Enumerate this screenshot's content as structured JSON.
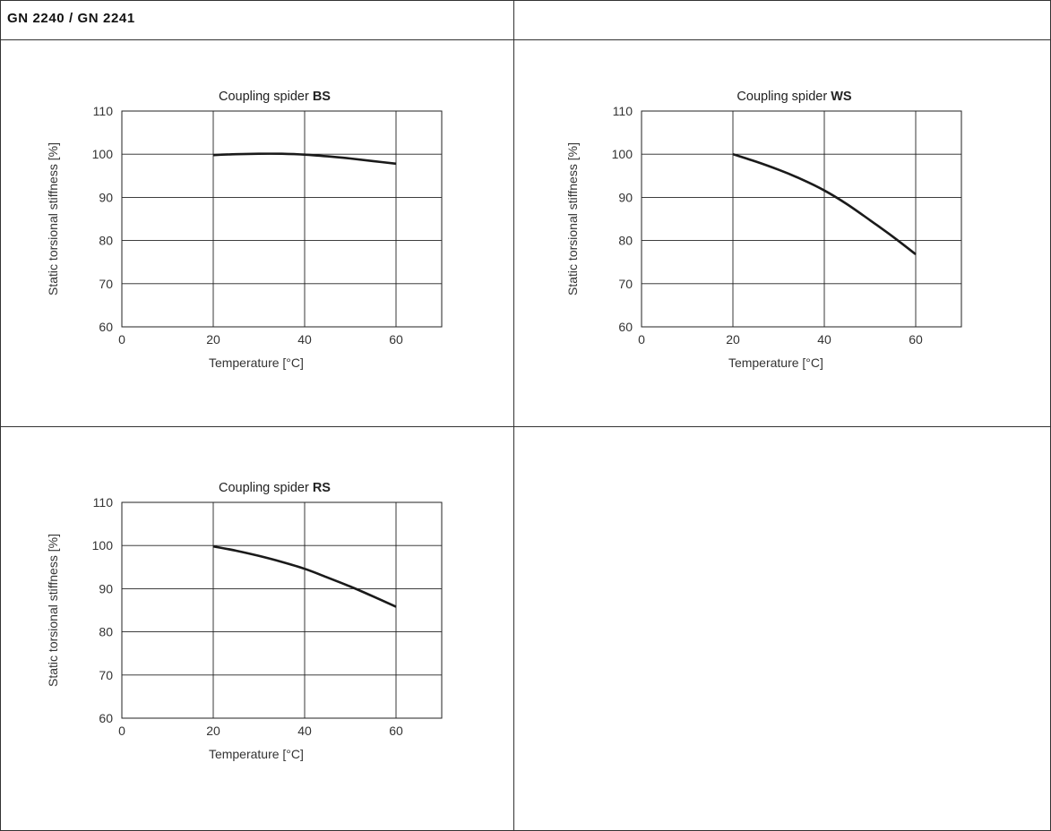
{
  "header": {
    "title": "GN 2240 / GN 2241"
  },
  "colors": {
    "line": "#1a1a1a",
    "grid": "#222222",
    "border": "#333333"
  },
  "chart_data": [
    {
      "type": "line",
      "title_prefix": "Coupling spider ",
      "title_bold": "BS",
      "xlabel": "Temperature [°C]",
      "ylabel": "Static torsional stiffness [%]",
      "xlim": [
        0,
        70
      ],
      "ylim": [
        60,
        110
      ],
      "xticks": [
        0,
        20,
        40,
        60
      ],
      "yticks": [
        60,
        70,
        80,
        90,
        100,
        110
      ],
      "grid": true,
      "series": [
        {
          "x": [
            20,
            25,
            30,
            35,
            40,
            45,
            50,
            55,
            60
          ],
          "y": [
            99.8,
            100.0,
            100.1,
            100.1,
            99.9,
            99.5,
            99.0,
            98.4,
            97.8
          ]
        }
      ]
    },
    {
      "type": "line",
      "title_prefix": "Coupling spider ",
      "title_bold": "WS",
      "xlabel": "Temperature [°C]",
      "ylabel": "Static torsional stiffness [%]",
      "xlim": [
        0,
        70
      ],
      "ylim": [
        60,
        110
      ],
      "xticks": [
        0,
        20,
        40,
        60
      ],
      "yticks": [
        60,
        70,
        80,
        90,
        100,
        110
      ],
      "grid": true,
      "series": [
        {
          "x": [
            20,
            25,
            30,
            35,
            40,
            45,
            50,
            55,
            60
          ],
          "y": [
            100.0,
            98.3,
            96.4,
            94.2,
            91.6,
            88.4,
            84.7,
            80.9,
            76.8
          ]
        }
      ]
    },
    {
      "type": "line",
      "title_prefix": "Coupling spider ",
      "title_bold": "RS",
      "xlabel": "Temperature [°C]",
      "ylabel": "Static torsional stiffness [%]",
      "xlim": [
        0,
        70
      ],
      "ylim": [
        60,
        110
      ],
      "xticks": [
        0,
        20,
        40,
        60
      ],
      "yticks": [
        60,
        70,
        80,
        90,
        100,
        110
      ],
      "grid": true,
      "series": [
        {
          "x": [
            20,
            25,
            30,
            35,
            40,
            45,
            50,
            55,
            60
          ],
          "y": [
            99.8,
            98.8,
            97.6,
            96.2,
            94.6,
            92.6,
            90.5,
            88.2,
            85.8
          ]
        }
      ]
    }
  ]
}
